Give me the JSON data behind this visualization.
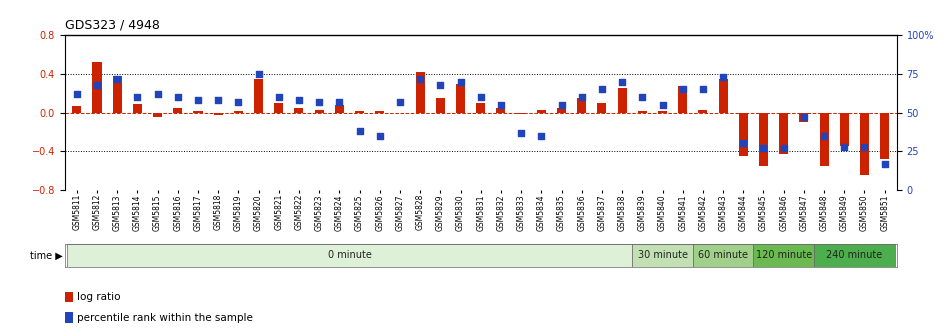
{
  "title": "GDS323 / 4948",
  "samples": [
    "GSM5811",
    "GSM5812",
    "GSM5813",
    "GSM5814",
    "GSM5815",
    "GSM5816",
    "GSM5817",
    "GSM5818",
    "GSM5819",
    "GSM5820",
    "GSM5821",
    "GSM5822",
    "GSM5823",
    "GSM5824",
    "GSM5825",
    "GSM5826",
    "GSM5827",
    "GSM5828",
    "GSM5829",
    "GSM5830",
    "GSM5831",
    "GSM5832",
    "GSM5833",
    "GSM5834",
    "GSM5835",
    "GSM5836",
    "GSM5837",
    "GSM5838",
    "GSM5839",
    "GSM5840",
    "GSM5841",
    "GSM5842",
    "GSM5843",
    "GSM5844",
    "GSM5845",
    "GSM5846",
    "GSM5847",
    "GSM5848",
    "GSM5849",
    "GSM5850",
    "GSM5851"
  ],
  "log_ratio": [
    0.07,
    0.52,
    0.38,
    0.09,
    -0.05,
    0.05,
    0.02,
    -0.03,
    0.02,
    0.35,
    0.1,
    0.05,
    0.03,
    0.08,
    0.02,
    0.02,
    0.0,
    0.42,
    0.15,
    0.3,
    0.1,
    0.05,
    -0.02,
    0.03,
    0.05,
    0.15,
    0.1,
    0.25,
    0.02,
    0.02,
    0.28,
    0.03,
    0.35,
    -0.45,
    -0.55,
    -0.43,
    -0.1,
    -0.55,
    -0.35,
    -0.65,
    -0.48
  ],
  "percentile": [
    62,
    68,
    72,
    60,
    62,
    60,
    58,
    58,
    57,
    75,
    60,
    58,
    57,
    57,
    38,
    35,
    57,
    72,
    68,
    70,
    60,
    55,
    37,
    35,
    55,
    60,
    65,
    70,
    60,
    55,
    65,
    65,
    73,
    30,
    27,
    27,
    47,
    35,
    28,
    28,
    17
  ],
  "time_groups": [
    {
      "label": "0 minute",
      "start": 0,
      "end": 28,
      "color": "#dff0d8"
    },
    {
      "label": "30 minute",
      "start": 28,
      "end": 31,
      "color": "#c2e0b4"
    },
    {
      "label": "60 minute",
      "start": 31,
      "end": 34,
      "color": "#a0d08a"
    },
    {
      "label": "120 minute",
      "start": 34,
      "end": 37,
      "color": "#6aba50"
    },
    {
      "label": "240 minute",
      "start": 37,
      "end": 41,
      "color": "#4cae4c"
    }
  ],
  "bar_color": "#cc2200",
  "dot_color": "#2244bb",
  "ylim_left": [
    -0.8,
    0.8
  ],
  "ylim_right": [
    0,
    100
  ],
  "yticks_left": [
    -0.8,
    -0.4,
    0.0,
    0.4,
    0.8
  ],
  "yticks_right": [
    0,
    25,
    50,
    75,
    100
  ],
  "yticklabels_right": [
    "0",
    "25",
    "50",
    "75",
    "100%"
  ],
  "axis_color_left": "#cc2200",
  "axis_color_right": "#2244bb",
  "title_fontsize": 9,
  "tick_fontsize": 7,
  "sample_fontsize": 5.5,
  "legend_items": [
    {
      "label": "log ratio",
      "color": "#cc2200"
    },
    {
      "label": "percentile rank within the sample",
      "color": "#2244bb"
    }
  ]
}
